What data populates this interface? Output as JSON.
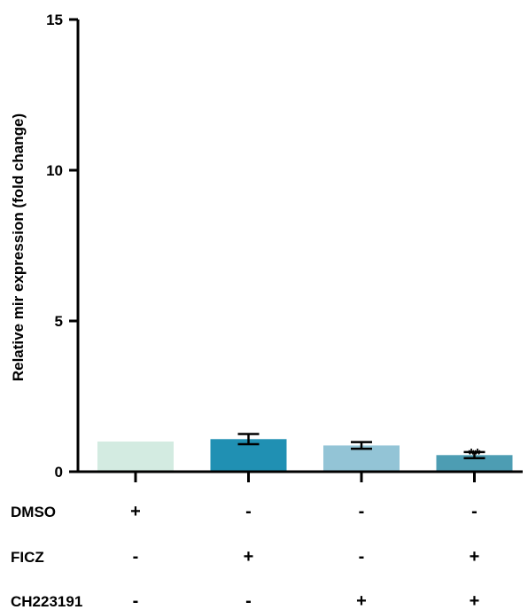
{
  "chart_data": {
    "type": "bar",
    "title": "",
    "ylabel": "Relative mir expression (fold change)",
    "ylim": [
      0,
      15
    ],
    "yticks": [
      0,
      5,
      10,
      15
    ],
    "grid": false,
    "bars": [
      {
        "value": 1.0,
        "error": 0.0,
        "color": "#d3ebe1",
        "annotation": ""
      },
      {
        "value": 1.08,
        "error": 0.17,
        "color": "#2090b3",
        "annotation": ""
      },
      {
        "value": 0.87,
        "error": 0.11,
        "color": "#93c4d6",
        "annotation": ""
      },
      {
        "value": 0.55,
        "error": 0.1,
        "color": "#4d9db3",
        "annotation": "**"
      }
    ],
    "conditions": [
      {
        "name": "DMSO",
        "signs": [
          "+",
          "-",
          "-",
          "-"
        ]
      },
      {
        "name": "FICZ",
        "signs": [
          "-",
          "+",
          "-",
          "+"
        ]
      },
      {
        "name": "CH223191",
        "signs": [
          "-",
          "-",
          "+",
          "+"
        ]
      }
    ]
  }
}
